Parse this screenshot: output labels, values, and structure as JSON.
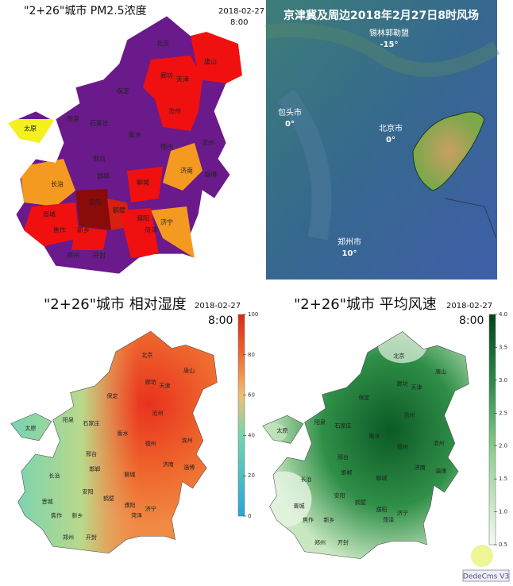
{
  "panels": [
    {
      "title": "\"2+26\"城市  PM2.5浓度",
      "date": "2018-02-27",
      "time": "8:00"
    },
    {
      "title": "京津冀及周边2018年2月27日8时风场",
      "places": [
        {
          "name": "锡林郭勒盟",
          "temp": "-15°"
        },
        {
          "name": "包头市",
          "temp": "0°"
        },
        {
          "name": "北京市",
          "temp": "0°"
        },
        {
          "name": "郑州市",
          "temp": "10°"
        }
      ]
    },
    {
      "title": "\"2+26\"城市  相对湿度",
      "date": "2018-02-27",
      "time": "8:00",
      "colorbar_ticks": [
        "0",
        "20",
        "40",
        "60",
        "80",
        "100"
      ]
    },
    {
      "title": "\"2+26\"城市  平均风速",
      "date": "2018-02-27",
      "time": "8:00",
      "colorbar_ticks": [
        "0.5",
        "1.0",
        "1.5",
        "2.0",
        "2.5",
        "3.0",
        "3.5",
        "4.0"
      ]
    }
  ],
  "cities": [
    "北京",
    "唐山",
    "廊坊",
    "天津",
    "保定",
    "沧州",
    "太原",
    "阳泉",
    "石家庄",
    "衡水",
    "德州",
    "滨州",
    "邢台",
    "济南",
    "淄博",
    "长治",
    "邯郸",
    "聊城",
    "晋城",
    "安阳",
    "鹤壁",
    "濮阳",
    "焦作",
    "新乡",
    "菏泽",
    "济宁",
    "郑州",
    "开封"
  ],
  "watermark": "DedeCms V3"
}
